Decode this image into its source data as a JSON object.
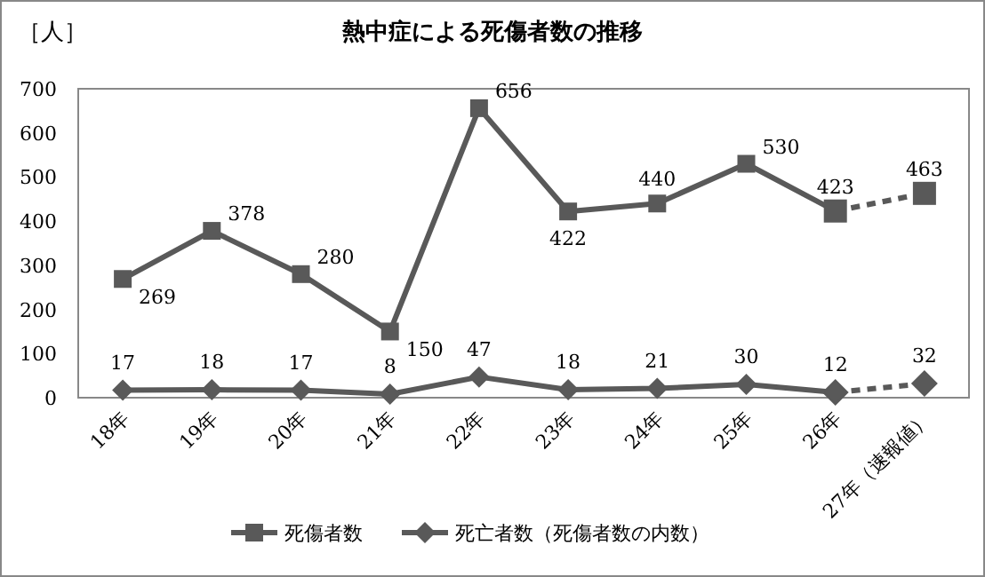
{
  "chart_data": {
    "type": "line",
    "title": "熱中症による死傷者数の推移",
    "ylabel": "［人］",
    "categories": [
      "18年",
      "19年",
      "20年",
      "21年",
      "22年",
      "23年",
      "24年",
      "25年",
      "26年",
      "27年（速報値）"
    ],
    "series": [
      {
        "name": "死傷者数",
        "color": "#595959",
        "marker": "square",
        "line_style": "solid",
        "values": [
          269,
          378,
          280,
          150,
          656,
          422,
          440,
          530,
          423,
          null
        ],
        "value_labels": [
          "269",
          "378",
          "280",
          "150",
          "656",
          "422",
          "440",
          "530",
          "423",
          null
        ]
      },
      {
        "color": "#595959",
        "marker": "square",
        "line_style": "dashed",
        "values": [
          null,
          null,
          null,
          null,
          null,
          null,
          null,
          null,
          423,
          463
        ],
        "value_labels": [
          null,
          null,
          null,
          null,
          null,
          null,
          null,
          null,
          null,
          "463"
        ]
      },
      {
        "name": "死亡者数（死傷者数の内数）",
        "color": "#595959",
        "marker": "diamond",
        "line_style": "solid",
        "values": [
          17,
          18,
          17,
          8,
          47,
          18,
          21,
          30,
          12,
          null
        ],
        "value_labels": [
          "17",
          "18",
          "17",
          "8",
          "47",
          "18",
          "21",
          "30",
          "12",
          null
        ]
      },
      {
        "color": "#595959",
        "marker": "diamond",
        "line_style": "dashed",
        "values": [
          null,
          null,
          null,
          null,
          null,
          null,
          null,
          null,
          12,
          32
        ],
        "value_labels": [
          null,
          null,
          null,
          null,
          null,
          null,
          null,
          null,
          null,
          "32"
        ]
      }
    ],
    "ylim": [
      0,
      700
    ],
    "yticks": [
      0,
      100,
      200,
      300,
      400,
      500,
      600,
      700
    ],
    "grid": false,
    "legend": "bottom"
  }
}
